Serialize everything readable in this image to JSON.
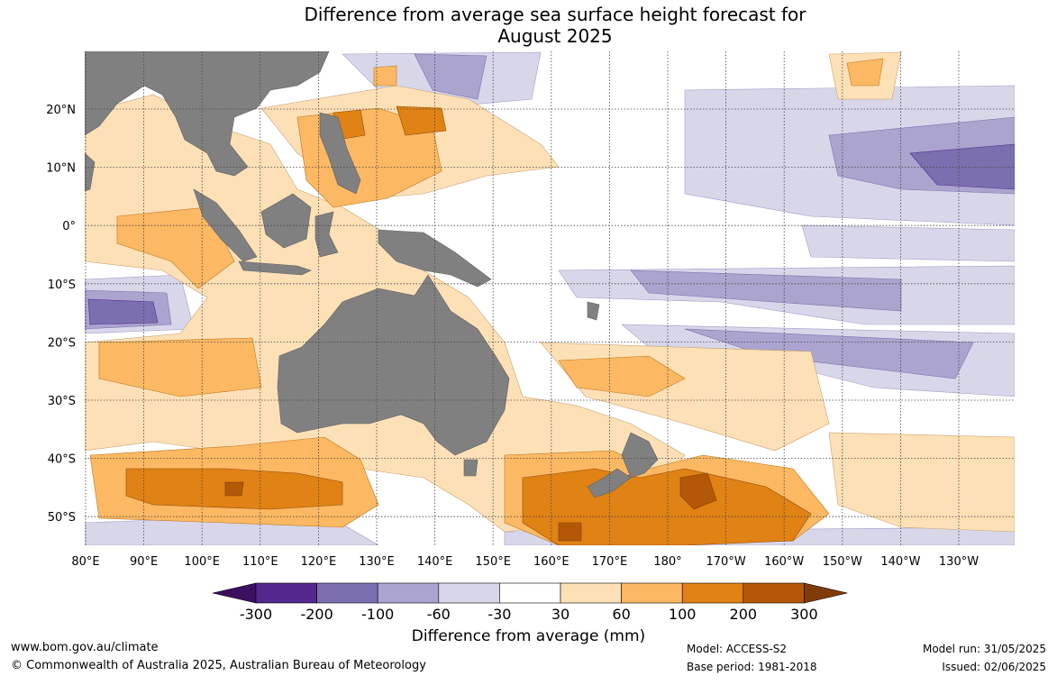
{
  "title_line1": "Difference from average sea surface height forecast for",
  "title_line2": "August 2025",
  "lon_labels": [
    "80°E",
    "90°E",
    "100°E",
    "110°E",
    "120°E",
    "130°E",
    "140°E",
    "150°E",
    "160°E",
    "170°E",
    "180°",
    "170°W",
    "160°W",
    "150°W",
    "140°W",
    "130°W"
  ],
  "lat_labels": [
    "20°N",
    "10°N",
    "0°",
    "10°S",
    "20°S",
    "30°S",
    "40°S",
    "50°S"
  ],
  "colorbar": {
    "ticks": [
      "-300",
      "-200",
      "-100",
      "-60",
      "-30",
      "30",
      "60",
      "100",
      "200",
      "300"
    ],
    "colors": [
      "#3b1060",
      "#54278f",
      "#7b6fb0",
      "#aba4ce",
      "#d8d7ea",
      "#ffffff",
      "#fee0b6",
      "#fdb863",
      "#e08214",
      "#b35806",
      "#7f3b08"
    ],
    "label": "Difference from average (mm)"
  },
  "map_colors": {
    "land": "#808080",
    "grid": "#444444"
  },
  "footer": {
    "website": "www.bom.gov.au/climate",
    "copyright": "© Commonwealth of Australia 2025, Australian Bureau of Meteorology",
    "model": "Model: ACCESS-S2",
    "base_period": "Base period: 1981-2018",
    "model_run": "Model run: 31/05/2025",
    "issued": "Issued: 02/06/2025"
  }
}
